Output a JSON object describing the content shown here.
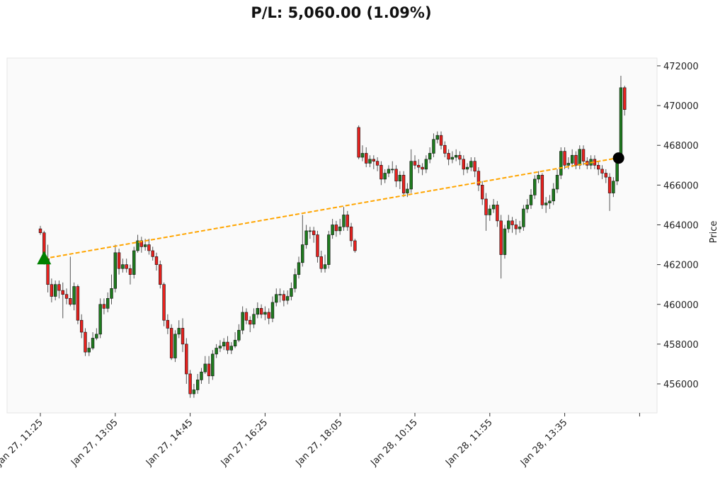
{
  "title": "P/L: 5,060.00 (1.09%)",
  "chart_data": {
    "type": "candlestick",
    "title": "P/L: 5,060.00 (1.09%)",
    "ylabel": "Price",
    "xlabel": "",
    "ylim": [
      454540,
      472390
    ],
    "y_ticks": [
      456000,
      458000,
      460000,
      462000,
      464000,
      466000,
      468000,
      470000,
      472000
    ],
    "x_ticks": [
      {
        "index": 0,
        "label": "Jan 27, 11:25"
      },
      {
        "index": 20,
        "label": "Jan 27, 13:05"
      },
      {
        "index": 40,
        "label": "Jan 27, 14:45"
      },
      {
        "index": 60,
        "label": "Jan 27, 16:25"
      },
      {
        "index": 80,
        "label": "Jan 27, 18:05"
      },
      {
        "index": 100,
        "label": "Jan 28, 10:15"
      },
      {
        "index": 120,
        "label": "Jan 28, 11:55"
      },
      {
        "index": 140,
        "label": "Jan 28, 13:35"
      },
      {
        "index": 160,
        "label": ""
      }
    ],
    "grid": false,
    "colors": {
      "up": "#1e7b1e",
      "down": "#e8211e",
      "edge": "#111111",
      "trend": "#ffa500",
      "entry": "#008000",
      "exit": "#000000",
      "background": "#fafafa"
    },
    "candles_ohlc": [
      [
        463800,
        463950,
        463500,
        463600
      ],
      [
        463600,
        463700,
        462000,
        462300
      ],
      [
        462300,
        463000,
        460600,
        461000
      ],
      [
        461000,
        461300,
        460100,
        460400
      ],
      [
        460400,
        461200,
        460200,
        461000
      ],
      [
        461000,
        461200,
        460300,
        460700
      ],
      [
        460700,
        461100,
        459300,
        460500
      ],
      [
        460500,
        460800,
        460000,
        460300
      ],
      [
        460300,
        462400,
        459900,
        460000
      ],
      [
        460000,
        461100,
        459700,
        460900
      ],
      [
        460900,
        461000,
        459000,
        459200
      ],
      [
        459200,
        459500,
        458300,
        458600
      ],
      [
        458600,
        458800,
        457400,
        457600
      ],
      [
        457600,
        458100,
        457400,
        457800
      ],
      [
        457800,
        458600,
        457700,
        458300
      ],
      [
        458300,
        458800,
        458200,
        458500
      ],
      [
        458500,
        460300,
        458300,
        460000
      ],
      [
        460000,
        460300,
        459500,
        459800
      ],
      [
        459800,
        460600,
        459600,
        460300
      ],
      [
        460300,
        461500,
        460000,
        460800
      ],
      [
        460800,
        463000,
        460600,
        462600
      ],
      [
        462600,
        462800,
        461500,
        461800
      ],
      [
        461800,
        462300,
        461600,
        462000
      ],
      [
        462000,
        462300,
        461600,
        461800
      ],
      [
        461800,
        462000,
        461000,
        461500
      ],
      [
        461500,
        462900,
        461300,
        462700
      ],
      [
        462700,
        463500,
        462600,
        463200
      ],
      [
        463200,
        463400,
        462600,
        462900
      ],
      [
        462900,
        463300,
        462700,
        463000
      ],
      [
        463000,
        463300,
        462500,
        462700
      ],
      [
        462700,
        462900,
        462200,
        462400
      ],
      [
        462400,
        462600,
        461700,
        462000
      ],
      [
        462000,
        462200,
        460800,
        461000
      ],
      [
        461000,
        461100,
        458900,
        459200
      ],
      [
        459200,
        459500,
        458500,
        458800
      ],
      [
        458800,
        459000,
        457200,
        457300
      ],
      [
        457300,
        458700,
        457100,
        458500
      ],
      [
        458500,
        459200,
        458300,
        458800
      ],
      [
        458800,
        459300,
        457600,
        458000
      ],
      [
        458000,
        458300,
        456000,
        456500
      ],
      [
        456500,
        456700,
        455300,
        455500
      ],
      [
        455500,
        456000,
        455300,
        455700
      ],
      [
        455700,
        456500,
        455500,
        456200
      ],
      [
        456200,
        456800,
        456000,
        456600
      ],
      [
        456600,
        457400,
        456500,
        457000
      ],
      [
        457000,
        457400,
        456000,
        456400
      ],
      [
        456400,
        457700,
        456200,
        457500
      ],
      [
        457500,
        458000,
        457300,
        457800
      ],
      [
        457800,
        458200,
        457600,
        457900
      ],
      [
        457900,
        458300,
        457700,
        458100
      ],
      [
        458100,
        458400,
        457500,
        457700
      ],
      [
        457700,
        458100,
        457500,
        457900
      ],
      [
        457900,
        458600,
        457800,
        458200
      ],
      [
        458200,
        459000,
        458100,
        458700
      ],
      [
        458700,
        459900,
        458500,
        459600
      ],
      [
        459600,
        459800,
        459000,
        459200
      ],
      [
        459200,
        459400,
        458600,
        459000
      ],
      [
        459000,
        459800,
        458800,
        459500
      ],
      [
        459500,
        460100,
        459300,
        459800
      ],
      [
        459800,
        460000,
        459300,
        459500
      ],
      [
        459500,
        459900,
        459200,
        459600
      ],
      [
        459600,
        459800,
        459000,
        459300
      ],
      [
        459300,
        460400,
        459100,
        460100
      ],
      [
        460100,
        460800,
        459900,
        460500
      ],
      [
        460500,
        460800,
        460100,
        460500
      ],
      [
        460500,
        460700,
        459900,
        460200
      ],
      [
        460200,
        460700,
        460000,
        460400
      ],
      [
        460400,
        461100,
        460200,
        460800
      ],
      [
        460800,
        461800,
        460600,
        461500
      ],
      [
        461500,
        462400,
        461300,
        462100
      ],
      [
        462100,
        464500,
        461900,
        463000
      ],
      [
        463000,
        464000,
        462800,
        463700
      ],
      [
        463700,
        463900,
        463300,
        463700
      ],
      [
        463700,
        463900,
        463100,
        463500
      ],
      [
        463500,
        463700,
        462100,
        462400
      ],
      [
        462400,
        462700,
        461600,
        461800
      ],
      [
        461800,
        462500,
        461600,
        462000
      ],
      [
        462000,
        463700,
        461800,
        463500
      ],
      [
        463500,
        464300,
        463300,
        464000
      ],
      [
        464000,
        464200,
        463400,
        463700
      ],
      [
        463700,
        464300,
        463500,
        463900
      ],
      [
        463900,
        464900,
        463700,
        464500
      ],
      [
        464500,
        464700,
        463700,
        463900
      ],
      [
        463900,
        464100,
        462900,
        463200
      ],
      [
        463200,
        463300,
        462600,
        462700
      ],
      [
        468900,
        469000,
        467300,
        467400
      ],
      [
        467400,
        468000,
        467200,
        467600
      ],
      [
        467600,
        467900,
        466900,
        467100
      ],
      [
        467100,
        467500,
        466900,
        467300
      ],
      [
        467300,
        467500,
        466800,
        467200
      ],
      [
        467200,
        467400,
        466700,
        467000
      ],
      [
        467000,
        467200,
        466000,
        466300
      ],
      [
        466300,
        466800,
        466100,
        466600
      ],
      [
        466600,
        467000,
        466400,
        466800
      ],
      [
        466800,
        467200,
        466600,
        466800
      ],
      [
        466800,
        467000,
        465900,
        466200
      ],
      [
        466200,
        466700,
        465800,
        466500
      ],
      [
        466500,
        466700,
        465400,
        465600
      ],
      [
        465600,
        466100,
        465400,
        465800
      ],
      [
        465800,
        467800,
        465600,
        467200
      ],
      [
        467200,
        467500,
        466800,
        467000
      ],
      [
        467000,
        467300,
        466600,
        466900
      ],
      [
        466900,
        467100,
        466500,
        466800
      ],
      [
        466800,
        467500,
        466600,
        467300
      ],
      [
        467300,
        467900,
        467100,
        467600
      ],
      [
        467600,
        468600,
        467400,
        468300
      ],
      [
        468300,
        468700,
        468100,
        468500
      ],
      [
        468500,
        468700,
        467800,
        468000
      ],
      [
        468000,
        468200,
        467400,
        467600
      ],
      [
        467600,
        467800,
        467000,
        467300
      ],
      [
        467300,
        467700,
        467100,
        467400
      ],
      [
        467400,
        467800,
        467200,
        467500
      ],
      [
        467500,
        467700,
        467000,
        467300
      ],
      [
        467300,
        467500,
        466500,
        466800
      ],
      [
        466800,
        467100,
        466600,
        466900
      ],
      [
        466900,
        467400,
        466700,
        467200
      ],
      [
        467200,
        467400,
        466400,
        466700
      ],
      [
        466700,
        466900,
        465700,
        466000
      ],
      [
        466000,
        466200,
        465000,
        465300
      ],
      [
        465300,
        465600,
        463700,
        464500
      ],
      [
        464500,
        465000,
        464200,
        464800
      ],
      [
        464800,
        465300,
        464600,
        465000
      ],
      [
        465000,
        465200,
        463900,
        464200
      ],
      [
        464200,
        464500,
        461300,
        462500
      ],
      [
        462500,
        464000,
        462300,
        463800
      ],
      [
        463800,
        464500,
        463600,
        464200
      ],
      [
        464200,
        464400,
        463600,
        464000
      ],
      [
        464000,
        464300,
        463500,
        463800
      ],
      [
        463800,
        464200,
        463600,
        463900
      ],
      [
        463900,
        465000,
        463700,
        464800
      ],
      [
        464800,
        465300,
        464600,
        465000
      ],
      [
        465000,
        465800,
        464800,
        465500
      ],
      [
        465500,
        466500,
        465300,
        466300
      ],
      [
        466300,
        466700,
        466100,
        466500
      ],
      [
        466500,
        466600,
        464800,
        465000
      ],
      [
        465000,
        465400,
        464600,
        465100
      ],
      [
        465100,
        465500,
        464800,
        465200
      ],
      [
        465200,
        466100,
        465000,
        465800
      ],
      [
        465800,
        466800,
        465600,
        466500
      ],
      [
        466500,
        467900,
        466300,
        467700
      ],
      [
        467700,
        467900,
        466800,
        467000
      ],
      [
        467000,
        467400,
        466800,
        467100
      ],
      [
        467100,
        467800,
        466900,
        467500
      ],
      [
        467500,
        467700,
        466800,
        467000
      ],
      [
        467000,
        468000,
        466800,
        467800
      ],
      [
        467800,
        468000,
        467000,
        467200
      ],
      [
        467200,
        467400,
        466800,
        467000
      ],
      [
        467000,
        467500,
        466800,
        467300
      ],
      [
        467300,
        467500,
        466800,
        467000
      ],
      [
        467000,
        467200,
        466500,
        466800
      ],
      [
        466800,
        467000,
        466300,
        466600
      ],
      [
        466600,
        466800,
        466100,
        466400
      ],
      [
        466400,
        466600,
        464700,
        465600
      ],
      [
        465600,
        466400,
        465400,
        466200
      ],
      [
        466200,
        467500,
        466000,
        467300
      ],
      [
        467300,
        471500,
        467100,
        470900
      ],
      [
        470900,
        471000,
        469500,
        469800
      ]
    ],
    "entry": {
      "index": 1,
      "price": 462300,
      "marker": "triangle-up"
    },
    "exit": {
      "index": 154,
      "price": 467360,
      "marker": "circle"
    },
    "trend_line": {
      "from_index": 1,
      "from_price": 462300,
      "to_index": 154,
      "to_price": 467360,
      "style": "dashed"
    }
  }
}
